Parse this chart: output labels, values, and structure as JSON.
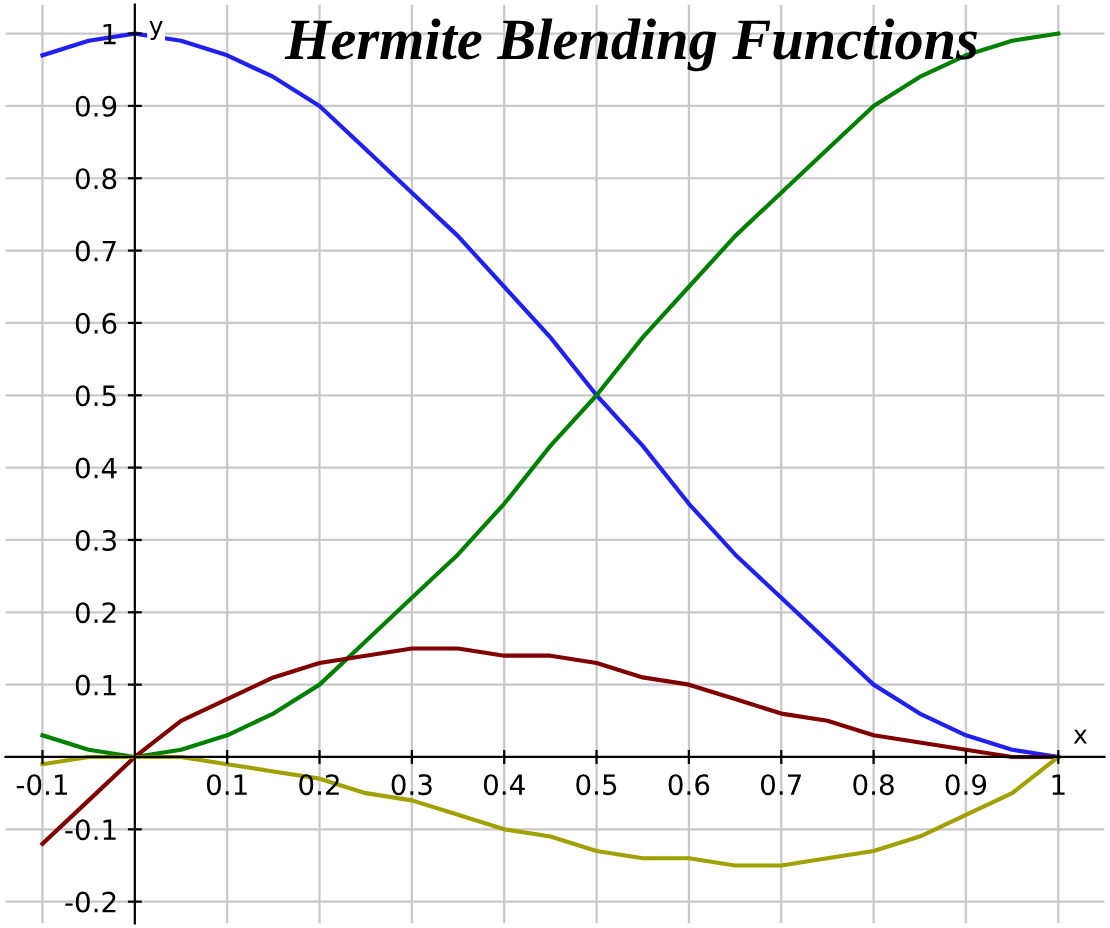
{
  "chart_data": {
    "type": "line",
    "title": "Hermite Blending Functions",
    "xlabel": "x",
    "ylabel": "y",
    "x": [
      -0.1,
      -0.05,
      0,
      0.05,
      0.1,
      0.15,
      0.2,
      0.25,
      0.3,
      0.35,
      0.4,
      0.45,
      0.5,
      0.55,
      0.6,
      0.65,
      0.7,
      0.75,
      0.8,
      0.85,
      0.9,
      0.95,
      1
    ],
    "series": [
      {
        "color": "#2020f0",
        "values": [
          0.97,
          0.99,
          1,
          0.99,
          0.97,
          0.94,
          0.9,
          0.84,
          0.78,
          0.72,
          0.65,
          0.58,
          0.5,
          0.43,
          0.35,
          0.28,
          0.22,
          0.16,
          0.1,
          0.06,
          0.03,
          0.01,
          0
        ]
      },
      {
        "color": "#008000",
        "values": [
          0.03,
          0.01,
          0,
          0.01,
          0.03,
          0.06,
          0.1,
          0.16,
          0.22,
          0.28,
          0.35,
          0.43,
          0.5,
          0.58,
          0.65,
          0.72,
          0.78,
          0.84,
          0.9,
          0.94,
          0.97,
          0.99,
          1
        ]
      },
      {
        "color": "#800000",
        "values": [
          -0.12,
          -0.06,
          0,
          0.05,
          0.08,
          0.11,
          0.13,
          0.14,
          0.15,
          0.15,
          0.14,
          0.14,
          0.13,
          0.11,
          0.1,
          0.08,
          0.06,
          0.05,
          0.03,
          0.02,
          0.01,
          0,
          0
        ]
      },
      {
        "color": "#a0a000",
        "values": [
          -0.01,
          0,
          0,
          0,
          -0.01,
          -0.02,
          -0.03,
          -0.05,
          -0.06,
          -0.08,
          -0.1,
          -0.11,
          -0.13,
          -0.14,
          -0.14,
          -0.15,
          -0.15,
          -0.14,
          -0.13,
          -0.11,
          -0.08,
          -0.05,
          0
        ]
      }
    ],
    "xlim": [
      -0.14,
      1.05
    ],
    "ylim": [
      -0.23,
      1.04
    ],
    "xticks": [
      -0.1,
      0.1,
      0.2,
      0.3,
      0.4,
      0.5,
      0.6,
      0.7,
      0.8,
      0.9,
      1
    ],
    "yticks": [
      -0.2,
      -0.1,
      0.1,
      0.2,
      0.3,
      0.4,
      0.5,
      0.6,
      0.7,
      0.8,
      0.9,
      1
    ],
    "grid": true,
    "line_style": "solid",
    "marker": "none"
  }
}
